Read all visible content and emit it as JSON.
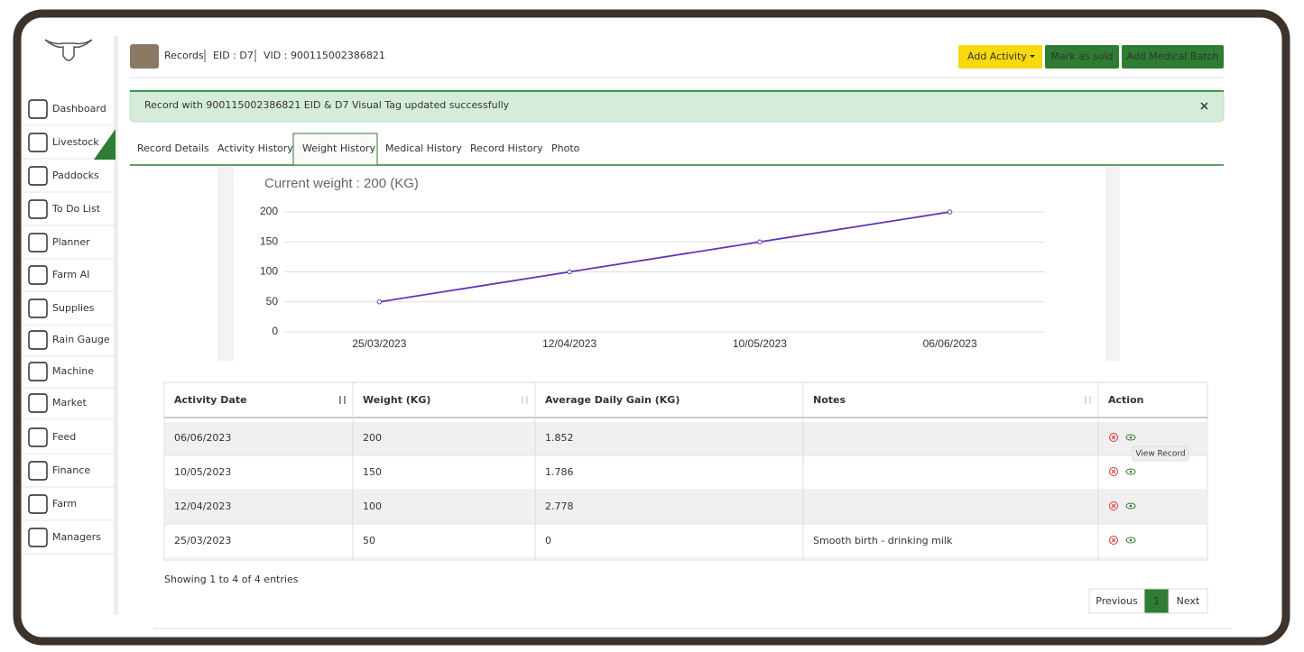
{
  "sidebar": {
    "items": [
      "Dashboard",
      "Livestock",
      "Paddocks",
      "To Do List",
      "Planner",
      "Farm AI",
      "Supplies",
      "Rain Gauge",
      "Machine",
      "Market",
      "Feed",
      "Finance",
      "Farm",
      "Managers"
    ]
  },
  "header": {
    "crumb": "Records",
    "eid": "EID : D7",
    "vid": "VID : 900115002386821",
    "buttons": [
      "Add Activity",
      "Mark as sold",
      "Add Medical Batch"
    ]
  },
  "alert": {
    "message": "Record with 900115002386821 EID & D7 Visual Tag updated successfully"
  },
  "tabs": [
    "Record Details",
    "Activity History",
    "Weight History",
    "Medical History",
    "Record History",
    "Photo"
  ],
  "chart_data": {
    "type": "line",
    "title": "Current weight : 200 (KG)",
    "categories": [
      "25/03/2023",
      "12/04/2023",
      "10/05/2023",
      "06/06/2023"
    ],
    "values": [
      50,
      100,
      150,
      200
    ],
    "color": "#6234b0",
    "ylim": [
      0,
      200
    ],
    "yticks": [
      0,
      50,
      100,
      150,
      200
    ],
    "grid": true
  },
  "table": {
    "columns": [
      "Activity Date",
      "Weight (KG)",
      "Average Daily Gain (KG)",
      "Notes",
      "Action"
    ],
    "rows": [
      [
        "06/06/2023",
        "200",
        "1.852",
        ""
      ],
      [
        "10/05/2023",
        "150",
        "1.786",
        ""
      ],
      [
        "12/04/2023",
        "100",
        "2.778",
        ""
      ],
      [
        "25/03/2023",
        "50",
        "0",
        "Smooth birth - drinking milk"
      ]
    ],
    "tooltip": "View Record"
  },
  "footer": {
    "info": "Showing 1 to 4 of 4 entries",
    "pagination": [
      "Previous",
      "1",
      "Next"
    ]
  }
}
